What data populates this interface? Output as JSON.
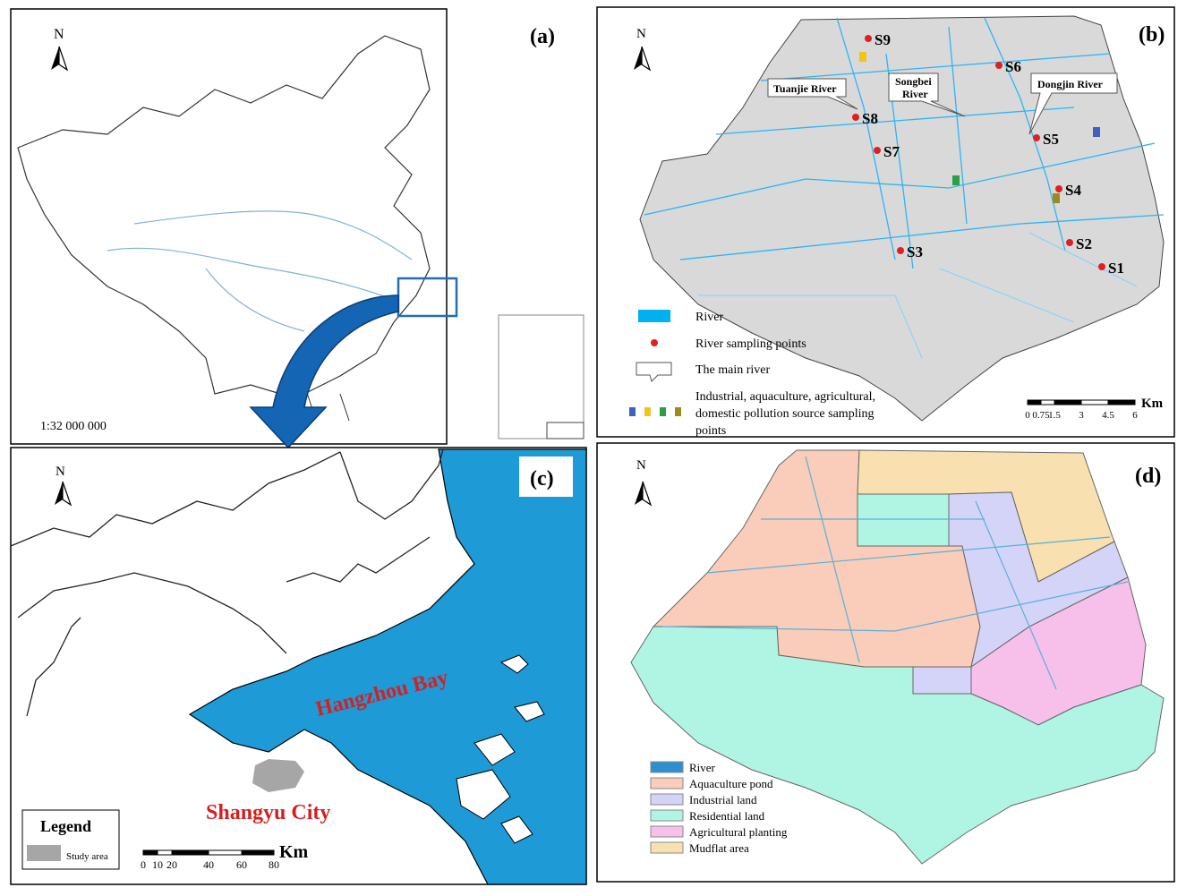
{
  "panel_a": {
    "north": "N",
    "label": "(a)",
    "scale": "1:32 000 000"
  },
  "panel_b": {
    "north": "N",
    "label": "(b)",
    "sites": [
      "S1",
      "S2",
      "S3",
      "S4",
      "S5",
      "S6",
      "S7",
      "S8",
      "S9"
    ],
    "rivers": {
      "tuanjie": "Tuanjie River",
      "songbei": [
        "Songbei",
        "River"
      ],
      "dongjin": "Dongjin River"
    },
    "legend": {
      "river": "River",
      "points": "River sampling points",
      "main": "The main river",
      "sources": [
        "Industrial, aquaculture, agricultural,",
        "domestic pollution source sampling",
        "points"
      ]
    },
    "scale": {
      "ticks": [
        "0",
        "0.75",
        "1.5",
        "3",
        "4.5",
        "6"
      ],
      "unit": "Km"
    }
  },
  "panel_c": {
    "north": "N",
    "label": "(c)",
    "bay": "Hangzhou Bay",
    "city": "Shangyu City",
    "legend_title": "Legend",
    "legend_item": "Study area",
    "scale": {
      "ticks": [
        "0",
        "10",
        "20",
        "40",
        "60",
        "80"
      ],
      "unit": "Km"
    }
  },
  "panel_d": {
    "north": "N",
    "label": "(d)",
    "legend": [
      "River",
      "Aquaculture pond",
      "Industrial land",
      "Residential land",
      "Agricultural planting",
      "Mudflat area"
    ]
  }
}
